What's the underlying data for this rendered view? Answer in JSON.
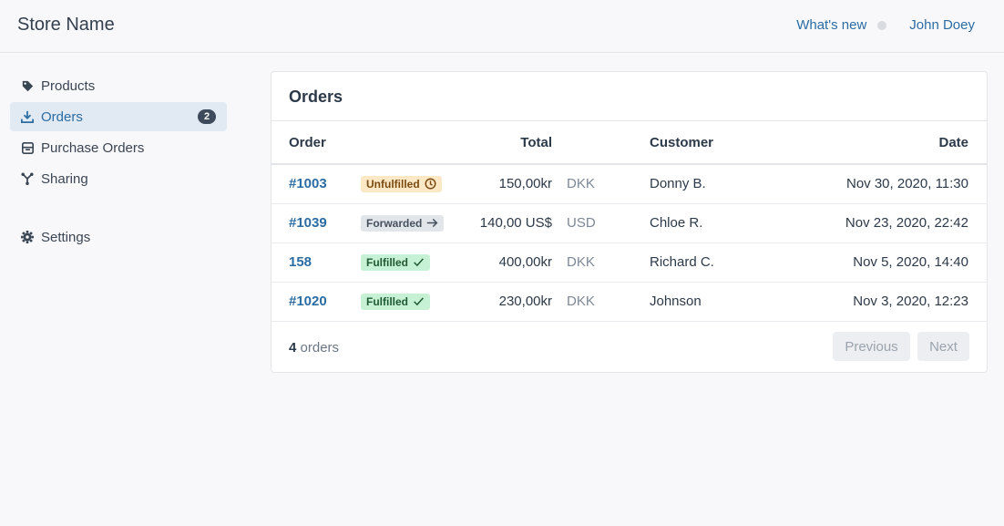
{
  "header": {
    "store_name": "Store Name",
    "whats_new": "What's new",
    "user": "John Doey"
  },
  "sidebar": {
    "items": [
      {
        "label": "Products",
        "icon": "tag-icon"
      },
      {
        "label": "Orders",
        "icon": "download-icon",
        "badge": "2",
        "active": true
      },
      {
        "label": "Purchase Orders",
        "icon": "archive-icon"
      },
      {
        "label": "Sharing",
        "icon": "share-icon"
      }
    ],
    "settings": {
      "label": "Settings",
      "icon": "gear-icon"
    }
  },
  "orders_card": {
    "title": "Orders",
    "columns": [
      "Order",
      "Total",
      "Customer",
      "Date"
    ],
    "rows": [
      {
        "order": "#1003",
        "status": "Unfulfilled",
        "status_icon": "clock-icon",
        "total": "150,00kr",
        "currency": "DKK",
        "customer": "Donny B.",
        "date": "Nov 30, 2020, 11:30"
      },
      {
        "order": "#1039",
        "status": "Forwarded",
        "status_icon": "arrow-right-icon",
        "total": "140,00 US$",
        "currency": "USD",
        "customer": "Chloe R.",
        "date": "Nov 23, 2020, 22:42"
      },
      {
        "order": "158",
        "status": "Fulfilled",
        "status_icon": "check-icon",
        "total": "400,00kr",
        "currency": "DKK",
        "customer": "Richard C.",
        "date": "Nov 5, 2020, 14:40"
      },
      {
        "order": "#1020",
        "status": "Fulfilled",
        "status_icon": "check-icon",
        "total": "230,00kr",
        "currency": "DKK",
        "customer": "Johnson",
        "date": "Nov 3, 2020, 12:23"
      }
    ],
    "count": "4",
    "count_label": "orders",
    "prev_label": "Previous",
    "next_label": "Next"
  },
  "colors": {
    "accent": "#2b6ca3",
    "unfulfilled_bg": "#fde8c6",
    "forwarded_bg": "#e2e6eb",
    "fulfilled_bg": "#c7f1d4"
  }
}
